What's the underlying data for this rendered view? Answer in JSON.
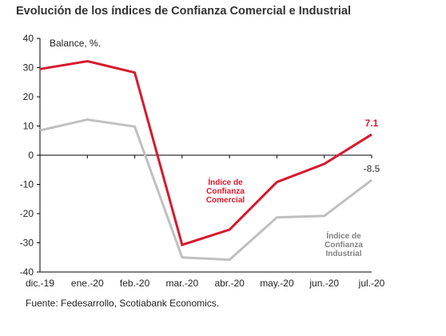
{
  "title": "Evolución de los índices de Confianza Comercial e Industrial",
  "source": "Fuente: Fedesarrollo, Scotiabank Economics.",
  "chart_data": {
    "type": "line",
    "title": "Evolución de los índices de Confianza Comercial e Industrial",
    "ylabel": "Balance, %.",
    "xlabel": "",
    "categories": [
      "dic.-19",
      "ene.-20",
      "feb.-20",
      "mar.-20",
      "abr.-20",
      "may.-20",
      "jun.-20",
      "jul.-20"
    ],
    "ylim": [
      -40,
      40
    ],
    "yticks": [
      40,
      30,
      20,
      10,
      0,
      -10,
      -20,
      -30,
      -40
    ],
    "grid": false,
    "series": [
      {
        "name": "Índice de Confianza Comercial",
        "name_lines": [
          "Índice de",
          "Confianza",
          "Comercial"
        ],
        "color": "#d7192e",
        "values": [
          29.5,
          32.2,
          28.3,
          -30.7,
          -25.5,
          -9.2,
          -3.0,
          7.1
        ],
        "end_label": "7.1"
      },
      {
        "name": "Índice de Confianza Industrial",
        "name_lines": [
          "Índice de",
          "Confianza",
          "Industrial"
        ],
        "color": "#c0c0c0",
        "values": [
          8.5,
          12.2,
          9.8,
          -35.0,
          -35.8,
          -21.3,
          -20.8,
          -8.5
        ],
        "end_label": "-8.5"
      }
    ]
  }
}
